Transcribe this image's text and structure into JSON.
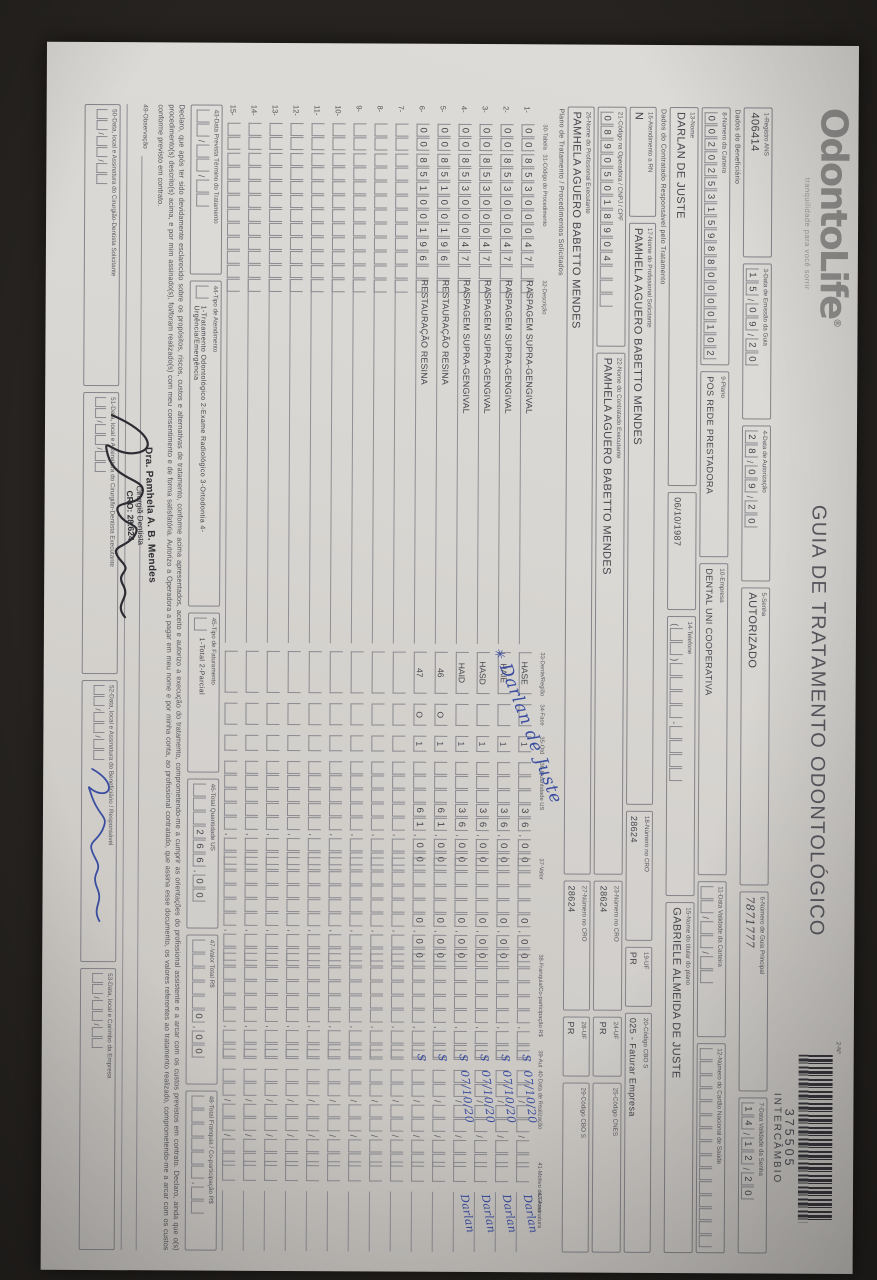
{
  "colors": {
    "ink_blue": "#3a4da0",
    "print_gray": "#4a4a50",
    "paper": "#d8d6d2",
    "background": "#262320"
  },
  "header": {
    "logo_text": "OdontoLife",
    "logo_reg": "®",
    "logo_tagline": "tranquilidade para você sorrir",
    "title": "GUIA DE TRATAMENTO ODONTOLÓGICO",
    "barcode_field_label": "2-Nº",
    "barcode_number": "375505",
    "barcode_type": "INTERCÂMBIO"
  },
  "sections": {
    "beneficiario": "Dados do Beneficiário",
    "contratado": "Dados do Contratado Responsável pelo Tratamento",
    "plano": "Plano de Tratamento / Procedimentos Solicitados"
  },
  "fields": {
    "f1": {
      "label": "1-Registro ANS",
      "value": "406414"
    },
    "f3": {
      "label": "3-Data de Emissão da Guia",
      "value": "15/09/20"
    },
    "f4": {
      "label": "4-Data de Autorização",
      "value": "28/09/20"
    },
    "f5": {
      "label": "5-Senha",
      "value": "AUTORIZADO"
    },
    "f6": {
      "label": "6-Número de Guia Principal",
      "value": "7871777"
    },
    "f7": {
      "label": "7-Data Validade da Senha",
      "value": "14/12/20"
    },
    "f8": {
      "label": "8-Número da Carteira",
      "value": "0020253159880000102"
    },
    "f9": {
      "label": "9-Plano",
      "value": "POS REDE PRESTADORA"
    },
    "f10": {
      "label": "10-Empresa",
      "value": "DENTAL UNI COOPERATIVA"
    },
    "f11": {
      "label": "11-Data Validade da Carteira",
      "value": ""
    },
    "f12": {
      "label": "12-Número do Cartão Nacional de Saúde",
      "value": ""
    },
    "f13": {
      "label": "13-Nome",
      "value": "DARLAN DE JUSTE"
    },
    "birth_date": "06/10/1987",
    "f14": {
      "label": "14-Telefone",
      "value": ""
    },
    "f15": {
      "label": "15-Nome do titular do plano",
      "value": "GABRIELE ALMEIDA DE JUSTE"
    },
    "f16": {
      "label": "16-Atendimento a RN",
      "value": "N"
    },
    "f17": {
      "label": "17-Nome do Profissional Solicitante",
      "value": "PAMHELA AGUERO BABETTO MENDES"
    },
    "f18": {
      "label": "18-Número no CRO",
      "value": "28624"
    },
    "f19": {
      "label": "19-UF",
      "value": "PR"
    },
    "f20": {
      "label": "20-Código CBO S",
      "value": "025 - Faturar Empresa"
    },
    "f21": {
      "label": "21-Código na Operadora / CNPJ / CPF",
      "value": "08905018904"
    },
    "f22": {
      "label": "22-Nome do Contratado Executante",
      "value": "PAMHELA AGUERO BABETTO MENDES"
    },
    "f23": {
      "label": "23-Número no CRO",
      "value": "28624"
    },
    "f24": {
      "label": "24-UF",
      "value": "PR"
    },
    "f25": {
      "label": "25-Código CNES",
      "value": ""
    },
    "f26": {
      "label": "26-Nome do Profissional Executante",
      "value": "PAMHELA AGUERO BABETTO MENDES"
    },
    "f27": {
      "label": "27-Número no CRO",
      "value": "28624"
    },
    "f28": {
      "label": "28-UF",
      "value": "PR"
    },
    "f29": {
      "label": "29-Código CBO S",
      "value": ""
    }
  },
  "table": {
    "headers": [
      "30-Tabela",
      "31-Código do Procedimento",
      "32-Descrição",
      "33-Dente/Região",
      "34-Face",
      "35-Qtd",
      "36-Quantidade US",
      "37-Valor",
      "38-Franquia/Co-participação R$",
      "39-Aut",
      "40-Data de Realização",
      "41-Motivo da Glosa",
      "42-Assinatura"
    ],
    "rows": [
      {
        "n": "1-",
        "tabela": "00",
        "codigo": "85300047",
        "descricao": "RASPAGEM SUPRA-GENGIVAL",
        "dente": "HASE",
        "face": "",
        "qtd": "1",
        "us": "36,00",
        "valor": "0,00",
        "franquia": "",
        "aut": "S",
        "data": "07/10/20",
        "glosa": "",
        "sig": "Darlan"
      },
      {
        "n": "2-",
        "tabela": "00",
        "codigo": "85300047",
        "descricao": "RASPAGEM SUPRA-GENGIVAL",
        "dente": "HAIE",
        "face": "",
        "qtd": "1",
        "us": "36,00",
        "valor": "0,00",
        "franquia": "",
        "aut": "S",
        "data": "07/10/20",
        "glosa": "",
        "sig": "Darlan"
      },
      {
        "n": "3-",
        "tabela": "00",
        "codigo": "85300047",
        "descricao": "RASPAGEM SUPRA-GENGIVAL",
        "dente": "HASD",
        "face": "",
        "qtd": "1",
        "us": "36,00",
        "valor": "0,00",
        "franquia": "",
        "aut": "S",
        "data": "07/10/20",
        "glosa": "",
        "sig": "Darlan"
      },
      {
        "n": "4-",
        "tabela": "00",
        "codigo": "85300047",
        "descricao": "RASPAGEM SUPRA-GENGIVAL",
        "dente": "HAID",
        "face": "",
        "qtd": "1",
        "us": "36,00",
        "valor": "0,00",
        "franquia": "",
        "aut": "S",
        "data": "07/10/20",
        "glosa": "",
        "sig": "Darlan"
      },
      {
        "n": "5-",
        "tabela": "00",
        "codigo": "85100196",
        "descricao": "RESTAURAÇÃO RESINA",
        "dente": "46",
        "face": "O",
        "qtd": "1",
        "us": "61,00",
        "valor": "0,00",
        "franquia": "",
        "aut": "S",
        "data": "",
        "glosa": "",
        "sig": ""
      },
      {
        "n": "6-",
        "tabela": "00",
        "codigo": "85100196",
        "descricao": "RESTAURAÇÃO RESINA",
        "dente": "47",
        "face": "O",
        "qtd": "1",
        "us": "61,00",
        "valor": "0,00",
        "franquia": "",
        "aut": "S",
        "data": "",
        "glosa": "",
        "sig": ""
      },
      {
        "n": "7-",
        "tabela": "",
        "codigo": "",
        "descricao": "",
        "dente": "",
        "face": "",
        "qtd": "",
        "us": "",
        "valor": "",
        "franquia": "",
        "aut": "",
        "data": "",
        "glosa": "",
        "sig": ""
      },
      {
        "n": "8-",
        "tabela": "",
        "codigo": "",
        "descricao": "",
        "dente": "",
        "face": "",
        "qtd": "",
        "us": "",
        "valor": "",
        "franquia": "",
        "aut": "",
        "data": "",
        "glosa": "",
        "sig": ""
      },
      {
        "n": "9-",
        "tabela": "",
        "codigo": "",
        "descricao": "",
        "dente": "",
        "face": "",
        "qtd": "",
        "us": "",
        "valor": "",
        "franquia": "",
        "aut": "",
        "data": "",
        "glosa": "",
        "sig": ""
      },
      {
        "n": "10-",
        "tabela": "",
        "codigo": "",
        "descricao": "",
        "dente": "",
        "face": "",
        "qtd": "",
        "us": "",
        "valor": "",
        "franquia": "",
        "aut": "",
        "data": "",
        "glosa": "",
        "sig": ""
      },
      {
        "n": "11-",
        "tabela": "",
        "codigo": "",
        "descricao": "",
        "dente": "",
        "face": "",
        "qtd": "",
        "us": "",
        "valor": "",
        "franquia": "",
        "aut": "",
        "data": "",
        "glosa": "",
        "sig": ""
      },
      {
        "n": "12-",
        "tabela": "",
        "codigo": "",
        "descricao": "",
        "dente": "",
        "face": "",
        "qtd": "",
        "us": "",
        "valor": "",
        "franquia": "",
        "aut": "",
        "data": "",
        "glosa": "",
        "sig": ""
      },
      {
        "n": "13-",
        "tabela": "",
        "codigo": "",
        "descricao": "",
        "dente": "",
        "face": "",
        "qtd": "",
        "us": "",
        "valor": "",
        "franquia": "",
        "aut": "",
        "data": "",
        "glosa": "",
        "sig": ""
      },
      {
        "n": "14-",
        "tabela": "",
        "codigo": "",
        "descricao": "",
        "dente": "",
        "face": "",
        "qtd": "",
        "us": "",
        "valor": "",
        "franquia": "",
        "aut": "",
        "data": "",
        "glosa": "",
        "sig": ""
      },
      {
        "n": "15-",
        "tabela": "",
        "codigo": "",
        "descricao": "",
        "dente": "",
        "face": "",
        "qtd": "",
        "us": "",
        "valor": "",
        "franquia": "",
        "aut": "",
        "data": "",
        "glosa": "",
        "sig": ""
      }
    ]
  },
  "footer": {
    "f43": {
      "label": "43-Data Prevista Término do Tratamento",
      "value": ""
    },
    "f44": {
      "label": "44-Tipo de Atendimento",
      "options": "1-Tratamento Odontológico   2-Exame Radiológico   3-Ortodontia   4-Urgência/Emergência",
      "value": ""
    },
    "f45": {
      "label": "45-Tipo de Faturamento",
      "options": "1-Total  2-Parcial",
      "value": ""
    },
    "f46": {
      "label": "46-Total Quantidade US",
      "value": "266,00"
    },
    "f47": {
      "label": "47-Valor Total R$",
      "value": "0,00"
    },
    "f48": {
      "label": "48-Total Franquia / Co-participação R$",
      "value": ""
    },
    "declaration": "Declaro, que após ter sido devidamente esclarecido sobre os propósitos, riscos, custos e alternativas de tratamento, conforme acima apresentados, aceito e autorizo a execução do tratamento, comprometendo-me a cumprir as orientações do profissional assistente e a arcar com os custos previstos em contrato. Declaro, ainda que o(s) procedimento(s) descrito(s) acima, e por mim assinado(s), foi/foram realizado(s) com meu consentimento e de forma satisfatória. Autorizo a Operadora a pagar em meu nome e por minha conta, ao profissional contratado, que assina esse documento, os valores referentes ao tratamento realizado, comprometendo-me a arcar com os custos conforme previsto em contrato.",
    "f49": {
      "label": "49-Observação",
      "value": ""
    },
    "f50": {
      "label": "50-Data, local e Assinatura do Cirurgião-Dentista Solicitante"
    },
    "f51": {
      "label": "51-Data, local e Assinatura do Cirurgião-Dentista Executante"
    },
    "f52": {
      "label": "52-Data, local e Assinatura do Beneficiário / Responsável"
    },
    "f53": {
      "label": "53-Data, local e Carimbo da Empresa"
    },
    "stamp": {
      "line1": "Dra. Pamhela A. B. Mendes",
      "line2": "Cirurgiã Dentista",
      "line3": "CRO: 28.624"
    }
  },
  "annotations": {
    "diagonal_note_star": "✳",
    "diagonal_note": "Darlan de Juste"
  }
}
